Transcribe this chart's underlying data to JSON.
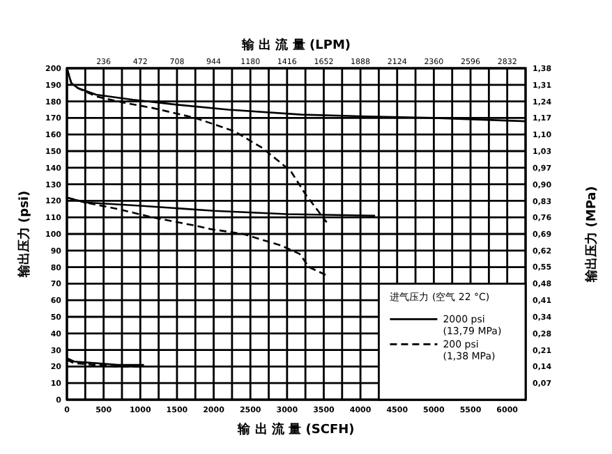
{
  "chart_data": {
    "type": "line",
    "xlabel": "输 出 流 量 (SCFH)",
    "x2label": "输 出 流 量 (LPM)",
    "ylabel": "输出压力 (psi)",
    "y2label": "输出压力 (MPa)",
    "legend_title": "进气压力 (空气 22 °C)",
    "legend": "bottom right",
    "grid": true,
    "xlim": [
      0,
      6250
    ],
    "ylim": [
      0,
      200
    ],
    "x2lim": [
      0,
      2950
    ],
    "y2lim": [
      0,
      1.379
    ],
    "xticks": [
      0,
      {
        "value": 250,
        "label": null
      },
      500,
      {
        "value": 750,
        "label": null
      },
      1000,
      {
        "value": 1250,
        "label": null
      },
      1500,
      {
        "value": 1750,
        "label": null
      },
      2000,
      {
        "value": 2250,
        "label": null
      },
      2500,
      {
        "value": 2750,
        "label": null
      },
      3000,
      {
        "value": 3250,
        "label": null
      },
      3500,
      {
        "value": 3750,
        "label": null
      },
      4000,
      {
        "value": 4250,
        "label": null
      },
      4500,
      {
        "value": 4750,
        "label": null
      },
      5000,
      {
        "value": 5250,
        "label": null
      },
      5500,
      {
        "value": 5750,
        "label": null
      },
      6000,
      {
        "value": 6250,
        "label": null
      }
    ],
    "yticks": [
      0,
      10,
      20,
      30,
      40,
      50,
      60,
      70,
      80,
      90,
      100,
      110,
      120,
      130,
      140,
      150,
      160,
      170,
      180,
      190,
      200
    ],
    "x2ticks": [
      236,
      472,
      708,
      944,
      1180,
      1416,
      1652,
      1888,
      2124,
      2360,
      2596,
      2832
    ],
    "y2ticks": [
      {
        "value": 0.069,
        "label": "0,07"
      },
      {
        "value": 0.138,
        "label": "0,14"
      },
      {
        "value": 0.207,
        "label": "0,21"
      },
      {
        "value": 0.276,
        "label": "0,28"
      },
      {
        "value": 0.345,
        "label": "0,34"
      },
      {
        "value": 0.414,
        "label": "0,41"
      },
      {
        "value": 0.483,
        "label": "0,48"
      },
      {
        "value": 0.552,
        "label": "0,55"
      },
      {
        "value": 0.621,
        "label": "0,62"
      },
      {
        "value": 0.689,
        "label": "0,69"
      },
      {
        "value": 0.758,
        "label": "0,76"
      },
      {
        "value": 0.827,
        "label": "0,83"
      },
      {
        "value": 0.896,
        "label": "0,90"
      },
      {
        "value": 0.965,
        "label": "0,97"
      },
      {
        "value": 1.034,
        "label": "1,03"
      },
      {
        "value": 1.103,
        "label": "1,10"
      },
      {
        "value": 1.172,
        "label": "1,17"
      },
      {
        "value": 1.241,
        "label": "1,24"
      },
      {
        "value": 1.31,
        "label": "1,31"
      },
      {
        "value": 1.379,
        "label": "1,38"
      }
    ],
    "series": [
      {
        "name": "2000 psi\n(13,79 MPa)",
        "color": "#000000",
        "line_style": "solid",
        "x": [
          0,
          60,
          150,
          400,
          900,
          1500,
          2200,
          3200,
          4000,
          5000,
          6250
        ],
        "values": [
          200,
          191,
          188,
          184,
          181,
          178,
          175,
          172,
          171,
          170,
          168
        ]
      },
      {
        "name": "200 psi\n(1,38 MPa)",
        "color": "#000000",
        "line_style": "dashed",
        "x": [
          0,
          60,
          150,
          400,
          800,
          1170,
          1750,
          2280,
          2660,
          3050,
          3250,
          3540
        ],
        "values": [
          200,
          191,
          188,
          183,
          179,
          176,
          170,
          162,
          152,
          138,
          124,
          107
        ]
      },
      {
        "color": "#000000",
        "line_style": "solid",
        "x": [
          0,
          250,
          1000,
          2000,
          3000,
          4200
        ],
        "values": [
          122,
          119,
          117,
          114,
          112,
          111
        ]
      },
      {
        "color": "#000000",
        "line_style": "dashed",
        "x": [
          0,
          250,
          700,
          1170,
          1750,
          1950,
          2400,
          2920,
          3170,
          3300,
          3540
        ],
        "values": [
          122,
          119,
          115,
          110,
          105,
          103,
          100,
          93,
          88,
          80,
          75
        ]
      },
      {
        "color": "#000000",
        "line_style": "solid",
        "x": [
          0,
          100,
          400,
          700,
          1050
        ],
        "values": [
          25,
          23,
          22,
          21,
          21
        ]
      },
      {
        "color": "#000000",
        "line_style": "dashed",
        "x": [
          0,
          100,
          400,
          700,
          1000
        ],
        "values": [
          24,
          22,
          21,
          20,
          20
        ]
      }
    ]
  }
}
